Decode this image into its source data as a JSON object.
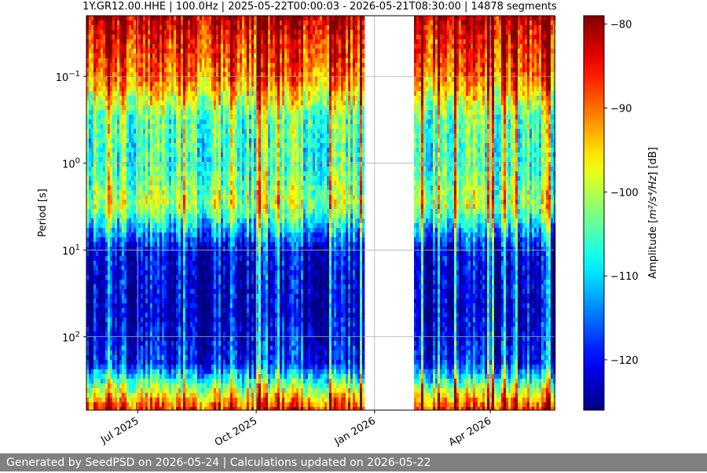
{
  "chart_data": {
    "type": "heatmap",
    "title": "1Y.GR12.00.HHE | 100.0Hz | 2025-05-22T00:00:03 - 2026-05-21T08:30:00 | 14878 segments",
    "xlabel": "",
    "ylabel": "Period [s]",
    "x_range": [
      "2025-05-22",
      "2026-05-21"
    ],
    "x_ticks": [
      {
        "date": "2025-07-01",
        "label": "Jul 2025"
      },
      {
        "date": "2025-10-01",
        "label": "Oct 2025"
      },
      {
        "date": "2026-01-01",
        "label": "Jan 2026"
      },
      {
        "date": "2026-04-01",
        "label": "Apr 2026"
      }
    ],
    "y_scale": "log",
    "y_inverted": true,
    "y_range": [
      0.02,
      700
    ],
    "y_ticks": [
      {
        "value": 0.1,
        "base": "10",
        "exp": "−1"
      },
      {
        "value": 1,
        "base": "10",
        "exp": "0"
      },
      {
        "value": 10,
        "base": "10",
        "exp": "1"
      },
      {
        "value": 100,
        "base": "10",
        "exp": "2"
      }
    ],
    "grid": true,
    "data_gap": [
      "2025-12-24",
      "2026-02-01"
    ],
    "profile": [
      {
        "period": 0.02,
        "amplitude_db": -81
      },
      {
        "period": 0.04,
        "amplitude_db": -86
      },
      {
        "period": 0.1,
        "amplitude_db": -90
      },
      {
        "period": 0.3,
        "amplitude_db": -104
      },
      {
        "period": 1,
        "amplitude_db": -106
      },
      {
        "period": 3,
        "amplitude_db": -100
      },
      {
        "period": 6,
        "amplitude_db": -112
      },
      {
        "period": 10,
        "amplitude_db": -121
      },
      {
        "period": 50,
        "amplitude_db": -123
      },
      {
        "period": 200,
        "amplitude_db": -119
      },
      {
        "period": 400,
        "amplitude_db": -100
      },
      {
        "period": 700,
        "amplitude_db": -86
      }
    ],
    "colorbar": {
      "label_prefix": "Amplitude [",
      "label_units": "m²/s⁴/Hz",
      "label_suffix": "] [dB]",
      "range": [
        -126,
        -79
      ],
      "ticks": [
        -80,
        -90,
        -100,
        -110,
        -120
      ],
      "colormap": "jet"
    }
  },
  "footer": {
    "text": "Generated by SeedPSD on 2026-05-24 | Calculations updated on 2026-05-22"
  }
}
